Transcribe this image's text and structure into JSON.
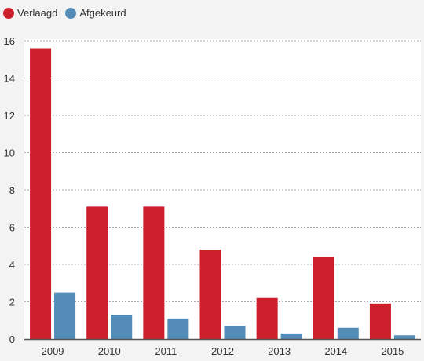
{
  "colors": {
    "verlaagd": "#cc1f2b",
    "afgekeurd": "#538cb6",
    "grid": "#a9a9a9",
    "axis": "#555555",
    "plot_bg": "#ffffff"
  },
  "chart_data": {
    "type": "bar",
    "categories": [
      "2009",
      "2010",
      "2011",
      "2012",
      "2013",
      "2014",
      "2015"
    ],
    "series": [
      {
        "name": "Verlaagd",
        "values": [
          15.6,
          7.1,
          7.1,
          4.8,
          2.2,
          4.4,
          1.9
        ]
      },
      {
        "name": "Afgekeurd",
        "values": [
          2.5,
          1.3,
          1.1,
          0.7,
          0.3,
          0.6,
          0.2
        ]
      }
    ],
    "yticks": [
      0,
      2,
      4,
      6,
      8,
      10,
      12,
      14,
      16
    ],
    "ylim": [
      0,
      16
    ],
    "grid": true,
    "legend_position": "top-left"
  }
}
